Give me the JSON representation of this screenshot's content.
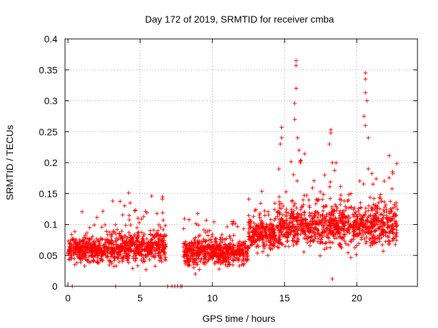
{
  "chart_data": {
    "type": "scatter",
    "title": "Day 172 of 2019, SRMTID for receiver cmba",
    "xlabel": "GPS time / hours",
    "ylabel": "SRMTID / TECUs",
    "xlim": [
      -0.2,
      24.2
    ],
    "ylim": [
      0,
      0.4
    ],
    "xticks": [
      0,
      5,
      10,
      15,
      20
    ],
    "xtick_labels": [
      "0",
      "5",
      "10",
      "15",
      "20"
    ],
    "yticks": [
      0,
      0.05,
      0.1,
      0.15,
      0.2,
      0.25,
      0.3,
      0.35,
      0.4
    ],
    "ytick_labels": [
      "0",
      "0.05",
      "0.1",
      "0.15",
      "0.2",
      "0.25",
      "0.3",
      "0.35",
      "0.4"
    ],
    "grid": true,
    "marker": "+",
    "color": "#ff0000",
    "series": [
      {
        "name": "SRMTID",
        "description_points_sampled": true,
        "segments": [
          {
            "x_start": 0.0,
            "x_end": 3.2,
            "y_base": 0.058,
            "y_spread": 0.02
          },
          {
            "x_start": 3.2,
            "x_end": 6.8,
            "y_base": 0.065,
            "y_spread": 0.025
          },
          {
            "x_start": 8.0,
            "x_end": 10.0,
            "y_base": 0.055,
            "y_spread": 0.022
          },
          {
            "x_start": 10.0,
            "x_end": 12.5,
            "y_base": 0.055,
            "y_spread": 0.02
          },
          {
            "x_start": 12.5,
            "x_end": 14.5,
            "y_base": 0.085,
            "y_spread": 0.025
          },
          {
            "x_start": 14.5,
            "x_end": 22.8,
            "y_base": 0.1,
            "y_spread": 0.035
          }
        ],
        "spikes": [
          {
            "x": 0.3,
            "y": 0.0
          },
          {
            "x": 3.3,
            "y": 0.0
          },
          {
            "x": 6.9,
            "y": 0.0
          },
          {
            "x": 7.2,
            "y": 0.0
          },
          {
            "x": 7.4,
            "y": 0.0
          },
          {
            "x": 7.6,
            "y": 0.0
          },
          {
            "x": 7.8,
            "y": 0.0
          },
          {
            "x": 7.9,
            "y": 0.0
          },
          {
            "x": 3.1,
            "y": 0.138
          },
          {
            "x": 4.2,
            "y": 0.151
          },
          {
            "x": 5.8,
            "y": 0.146
          },
          {
            "x": 14.8,
            "y": 0.257
          },
          {
            "x": 14.8,
            "y": 0.24
          },
          {
            "x": 14.7,
            "y": 0.23
          },
          {
            "x": 15.8,
            "y": 0.365
          },
          {
            "x": 15.8,
            "y": 0.357
          },
          {
            "x": 15.8,
            "y": 0.32
          },
          {
            "x": 15.7,
            "y": 0.296
          },
          {
            "x": 15.7,
            "y": 0.27
          },
          {
            "x": 15.9,
            "y": 0.24
          },
          {
            "x": 16.0,
            "y": 0.22
          },
          {
            "x": 16.1,
            "y": 0.2
          },
          {
            "x": 18.2,
            "y": 0.253
          },
          {
            "x": 18.2,
            "y": 0.248
          },
          {
            "x": 18.1,
            "y": 0.23
          },
          {
            "x": 18.3,
            "y": 0.2
          },
          {
            "x": 18.3,
            "y": 0.012
          },
          {
            "x": 20.6,
            "y": 0.345
          },
          {
            "x": 20.6,
            "y": 0.335
          },
          {
            "x": 20.6,
            "y": 0.313
          },
          {
            "x": 20.7,
            "y": 0.3
          },
          {
            "x": 20.5,
            "y": 0.275
          },
          {
            "x": 20.6,
            "y": 0.26
          },
          {
            "x": 20.8,
            "y": 0.24
          },
          {
            "x": 20.8,
            "y": 0.19
          }
        ]
      }
    ]
  }
}
